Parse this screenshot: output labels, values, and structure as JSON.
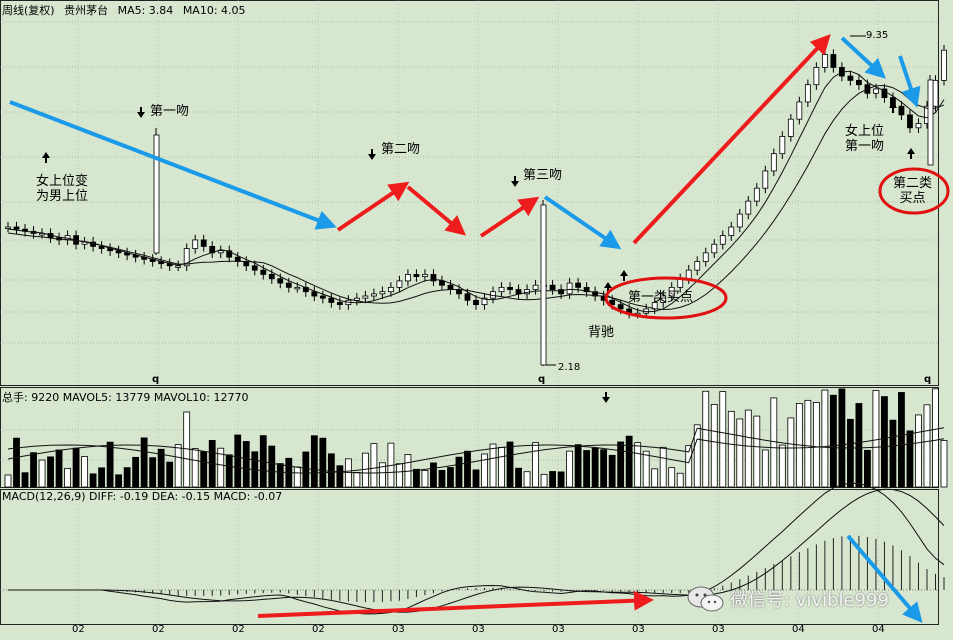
{
  "price_header": {
    "period": "周线(复权)",
    "name": "贵州茅台",
    "ma5": "MA5: 3.84",
    "ma10": "MA10: 4.05"
  },
  "volume_header": "总手: 9220 MAVOL5: 13779 MAVOL10: 12770",
  "macd_header": "MACD(12,26,9) DIFF: -0.19 DEA: -0.15 MACD: -0.07",
  "annotations": {
    "kiss1": "第一吻",
    "kiss2": "第二吻",
    "kiss3": "第三吻",
    "woman_top_line1": "女上位变",
    "woman_top_line2": "为男上位",
    "buy1": "第一类买点",
    "divergence": "背驰",
    "woman_top2_line1": "女上位",
    "woman_top2_line2": "第一吻",
    "buy2_line1": "第二类",
    "buy2_line2": "买点",
    "high_label": "9.35",
    "low_label": "2.18"
  },
  "x_ticks": [
    "02",
    "02",
    "02",
    "02",
    "03",
    "03",
    "03",
    "03",
    "03",
    "04",
    "04"
  ],
  "q_label": "q",
  "watermark": {
    "icon": "wechat-icon",
    "text": "微信号: vivible999"
  },
  "colors": {
    "bg": "#d7e7cf",
    "up_arrow": "#ee1c1c",
    "down_arrow": "#1a9ae8",
    "circle": "#e01010"
  },
  "chart_data": {
    "type": "candlestick",
    "title": "贵州茅台 周线(复权)",
    "price_key_points": [
      {
        "label": "low",
        "value": 2.18
      },
      {
        "label": "high",
        "value": 9.35
      }
    ],
    "close_series": [
      5.2,
      5.15,
      5.1,
      5.05,
      5.05,
      4.95,
      4.9,
      5.0,
      4.8,
      4.85,
      4.75,
      4.7,
      4.65,
      4.6,
      4.55,
      4.5,
      4.45,
      4.4,
      4.35,
      4.3,
      4.3,
      4.7,
      4.9,
      4.75,
      4.6,
      4.65,
      4.5,
      4.4,
      4.3,
      4.2,
      4.1,
      4.0,
      3.9,
      3.8,
      3.8,
      3.7,
      3.6,
      3.55,
      3.45,
      3.4,
      3.5,
      3.55,
      3.6,
      3.65,
      3.7,
      3.8,
      3.95,
      4.1,
      4.05,
      4.1,
      3.95,
      3.85,
      3.75,
      3.65,
      3.5,
      3.4,
      3.55,
      3.7,
      3.8,
      3.75,
      3.65,
      3.75,
      3.85,
      3.85,
      3.75,
      3.65,
      3.9,
      3.8,
      3.7,
      3.6,
      3.5,
      3.4,
      3.3,
      3.2,
      3.2,
      3.3,
      3.45,
      3.6,
      3.8,
      4.0,
      4.2,
      4.4,
      4.6,
      4.8,
      5.0,
      5.2,
      5.5,
      5.8,
      6.1,
      6.5,
      6.9,
      7.3,
      7.7,
      8.1,
      8.5,
      8.9,
      9.2,
      8.9,
      8.7,
      8.6,
      8.5,
      8.3,
      8.4,
      8.2,
      8.0,
      7.8,
      7.5,
      7.6,
      8.0,
      8.6,
      9.3
    ],
    "macd_zero_line": 0,
    "volume_scale_note": "relative bars",
    "annotation_arrows": [
      {
        "color": "blue",
        "direction": "down",
        "from": "start",
        "to": "第二吻 low"
      },
      {
        "color": "red",
        "direction": "up",
        "to": "第二吻"
      },
      {
        "color": "red",
        "direction": "down",
        "to": "第三吻 low"
      },
      {
        "color": "red",
        "direction": "up",
        "to": "第三吻"
      },
      {
        "color": "blue",
        "direction": "down",
        "to": "第一类买点"
      },
      {
        "color": "red",
        "direction": "up",
        "to": "9.35"
      },
      {
        "color": "blue",
        "direction": "down",
        "to": "第二类买点"
      }
    ]
  }
}
